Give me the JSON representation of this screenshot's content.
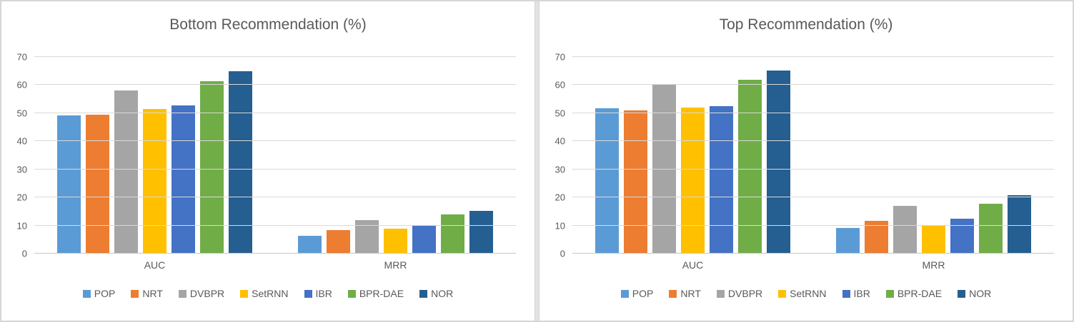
{
  "page": {
    "background": "#ffffff",
    "outer_border_color": "#d6d6d6",
    "divider_color": "#e3e3e3",
    "text_color": "#595959",
    "gridline_color": "#d9d9d9"
  },
  "chart_data": [
    {
      "type": "bar",
      "title": "Bottom Recommendation (%)",
      "categories": [
        "AUC",
        "MRR"
      ],
      "series": [
        {
          "name": "POP",
          "color": "#5B9BD5",
          "pattern": false,
          "values": [
            49.1,
            6.3
          ]
        },
        {
          "name": "NRT",
          "color": "#ED7D31",
          "pattern": false,
          "values": [
            49.4,
            8.4
          ]
        },
        {
          "name": "DVBPR",
          "color": "#A5A5A5",
          "pattern": true,
          "values": [
            58.0,
            11.8
          ]
        },
        {
          "name": "SetRNN",
          "color": "#FFC000",
          "pattern": false,
          "values": [
            51.6,
            8.8
          ]
        },
        {
          "name": "IBR",
          "color": "#4472C4",
          "pattern": false,
          "values": [
            52.7,
            9.9
          ]
        },
        {
          "name": "BPR-DAE",
          "color": "#70AD47",
          "pattern": false,
          "values": [
            61.4,
            14.0
          ]
        },
        {
          "name": "NOR",
          "color": "#255E91",
          "pattern": false,
          "values": [
            64.9,
            15.2
          ]
        }
      ],
      "xlabel": "",
      "ylabel": "",
      "ylim": [
        0,
        70
      ],
      "y_ticks": [
        0,
        10,
        20,
        30,
        40,
        50,
        60,
        70
      ],
      "grid": true,
      "legend_position": "bottom"
    },
    {
      "type": "bar",
      "title": "Top Recommendation (%)",
      "categories": [
        "AUC",
        "MRR"
      ],
      "series": [
        {
          "name": "POP",
          "color": "#5B9BD5",
          "pattern": false,
          "values": [
            51.7,
            9.1
          ]
        },
        {
          "name": "NRT",
          "color": "#ED7D31",
          "pattern": false,
          "values": [
            51.0,
            11.6
          ]
        },
        {
          "name": "DVBPR",
          "color": "#A5A5A5",
          "pattern": true,
          "values": [
            60.4,
            17.0
          ]
        },
        {
          "name": "SetRNN",
          "color": "#FFC000",
          "pattern": false,
          "values": [
            52.0,
            10.0
          ]
        },
        {
          "name": "IBR",
          "color": "#4472C4",
          "pattern": false,
          "values": [
            52.5,
            12.5
          ]
        },
        {
          "name": "BPR-DAE",
          "color": "#70AD47",
          "pattern": false,
          "values": [
            61.9,
            17.8
          ]
        },
        {
          "name": "NOR",
          "color": "#255E91",
          "pattern": false,
          "values": [
            65.2,
            20.8
          ]
        }
      ],
      "xlabel": "",
      "ylabel": "",
      "ylim": [
        0,
        70
      ],
      "y_ticks": [
        0,
        10,
        20,
        30,
        40,
        50,
        60,
        70
      ],
      "grid": true,
      "legend_position": "bottom"
    }
  ]
}
